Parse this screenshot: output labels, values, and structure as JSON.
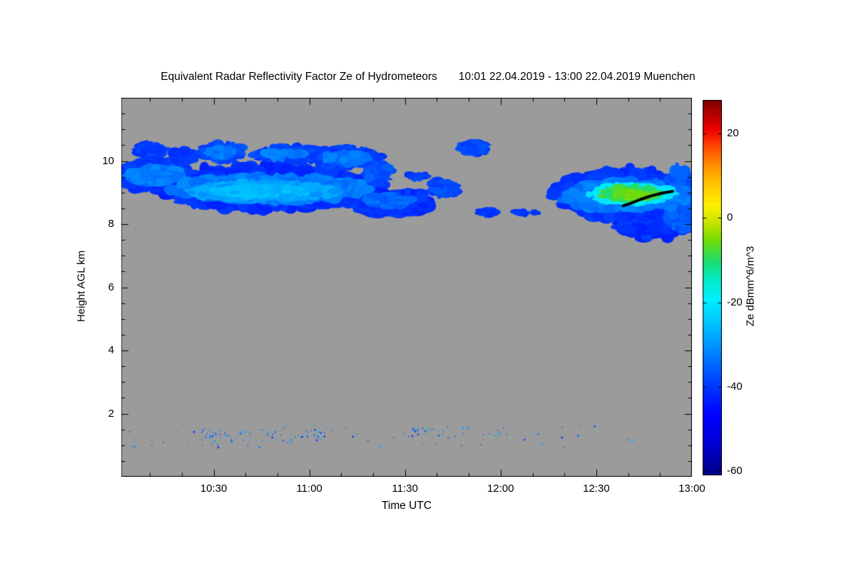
{
  "chart_data": {
    "type": "heatmap",
    "title": "Equivalent Radar Reflectivity Factor Ze of Hydrometeors",
    "subtitle": "10:01 22.04.2019 - 13:00 22.04.2019 Muenchen",
    "xlabel": "Time UTC",
    "ylabel": "Height AGL km",
    "x_range_hours": [
      10.0167,
      13.0
    ],
    "y_range_km": [
      0,
      12
    ],
    "x_ticks": [
      {
        "hour": 10.5,
        "label": "10:30"
      },
      {
        "hour": 11.0,
        "label": "11:00"
      },
      {
        "hour": 11.5,
        "label": "11:30"
      },
      {
        "hour": 12.0,
        "label": "12:00"
      },
      {
        "hour": 12.5,
        "label": "12:30"
      },
      {
        "hour": 13.0,
        "label": "13:00"
      }
    ],
    "x_minor_interval_min": 10,
    "y_ticks": [
      2,
      4,
      6,
      8,
      10
    ],
    "y_minor_interval_km": 0.5,
    "plot_bg": "#9b9b9b",
    "page_bg": "#ffffff",
    "colorbar": {
      "label": "Ze dBmm^6/m^3",
      "min": -61,
      "max": 28,
      "ticks": [
        20,
        0,
        -20,
        -40,
        -60
      ],
      "stops": [
        [
          0.0,
          "#000082"
        ],
        [
          0.08,
          "#0000D2"
        ],
        [
          0.16,
          "#0000FF"
        ],
        [
          0.25,
          "#0041FF"
        ],
        [
          0.33,
          "#0087FF"
        ],
        [
          0.41,
          "#00C8FF"
        ],
        [
          0.47,
          "#00EFFF"
        ],
        [
          0.52,
          "#00EBC8"
        ],
        [
          0.57,
          "#1EDC6E"
        ],
        [
          0.63,
          "#78DC00"
        ],
        [
          0.68,
          "#D2E600"
        ],
        [
          0.72,
          "#FFF000"
        ],
        [
          0.77,
          "#FFC800"
        ],
        [
          0.82,
          "#FF9600"
        ],
        [
          0.87,
          "#FF5000"
        ],
        [
          0.92,
          "#F00000"
        ],
        [
          1.0,
          "#7D0000"
        ]
      ]
    },
    "clouds": [
      {
        "t0": 10.02,
        "t1": 10.36,
        "h0": 9.1,
        "h1": 10.0,
        "value": -40,
        "puffs": 280,
        "pw": 10,
        "ph": 6,
        "seed": 11
      },
      {
        "t0": 10.24,
        "t1": 11.34,
        "h0": 8.5,
        "h1": 9.8,
        "value": -41,
        "puffs": 700,
        "pw": 12,
        "ph": 7,
        "seed": 12
      },
      {
        "t0": 11.22,
        "t1": 11.64,
        "h0": 8.3,
        "h1": 9.05,
        "value": -41,
        "puffs": 240,
        "pw": 10,
        "ph": 6,
        "seed": 13
      },
      {
        "t0": 10.1,
        "t1": 10.24,
        "h0": 10.15,
        "h1": 10.55,
        "value": -39,
        "puffs": 80,
        "pw": 8,
        "ph": 5,
        "seed": 14
      },
      {
        "t0": 10.28,
        "t1": 10.4,
        "h0": 9.95,
        "h1": 10.35,
        "value": -39,
        "puffs": 70,
        "pw": 8,
        "ph": 5,
        "seed": 15
      },
      {
        "t0": 10.44,
        "t1": 10.64,
        "h0": 10.0,
        "h1": 10.55,
        "value": -38,
        "puffs": 120,
        "pw": 9,
        "ph": 5,
        "seed": 16
      },
      {
        "t0": 10.72,
        "t1": 11.1,
        "h0": 10.0,
        "h1": 10.45,
        "value": -39,
        "puffs": 160,
        "pw": 9,
        "ph": 5,
        "seed": 17
      },
      {
        "t0": 11.04,
        "t1": 11.36,
        "h0": 9.8,
        "h1": 10.4,
        "value": -39,
        "puffs": 160,
        "pw": 9,
        "ph": 5,
        "seed": 18
      },
      {
        "t0": 11.3,
        "t1": 11.42,
        "h0": 9.3,
        "h1": 9.95,
        "value": -37,
        "puffs": 70,
        "pw": 7,
        "ph": 5,
        "seed": 40
      },
      {
        "t0": 10.05,
        "t1": 10.32,
        "h0": 9.3,
        "h1": 9.8,
        "value": -33,
        "puffs": 160,
        "pw": 9,
        "ph": 5,
        "seed": 19
      },
      {
        "t0": 10.32,
        "t1": 11.26,
        "h0": 8.7,
        "h1": 9.5,
        "value": -33,
        "puffs": 480,
        "pw": 11,
        "ph": 6,
        "seed": 20
      },
      {
        "t0": 10.4,
        "t1": 11.12,
        "h0": 8.78,
        "h1": 9.32,
        "value": -29,
        "puffs": 330,
        "pw": 10,
        "ph": 5,
        "seed": 21
      },
      {
        "t0": 10.5,
        "t1": 10.98,
        "h0": 8.88,
        "h1": 9.2,
        "value": -26,
        "puffs": 170,
        "pw": 9,
        "ph": 4,
        "seed": 22
      },
      {
        "t0": 10.46,
        "t1": 10.6,
        "h0": 10.12,
        "h1": 10.42,
        "value": -33,
        "puffs": 55,
        "pw": 7,
        "ph": 4,
        "seed": 23
      },
      {
        "t0": 10.76,
        "t1": 10.98,
        "h0": 10.08,
        "h1": 10.36,
        "value": -33,
        "puffs": 70,
        "pw": 7,
        "ph": 4,
        "seed": 24
      },
      {
        "t0": 11.08,
        "t1": 11.3,
        "h0": 9.9,
        "h1": 10.28,
        "value": -33,
        "puffs": 75,
        "pw": 7,
        "ph": 4,
        "seed": 25
      },
      {
        "t0": 11.3,
        "t1": 11.52,
        "h0": 8.55,
        "h1": 8.95,
        "value": -35,
        "puffs": 100,
        "pw": 8,
        "ph": 4,
        "seed": 26
      },
      {
        "t0": 11.62,
        "t1": 11.78,
        "h0": 8.9,
        "h1": 9.35,
        "value": -38,
        "puffs": 70,
        "pw": 8,
        "ph": 5,
        "seed": 27
      },
      {
        "t0": 11.78,
        "t1": 11.93,
        "h0": 10.2,
        "h1": 10.6,
        "value": -38,
        "puffs": 60,
        "pw": 7,
        "ph": 4,
        "seed": 28
      },
      {
        "t0": 11.87,
        "t1": 11.99,
        "h0": 8.28,
        "h1": 8.5,
        "value": -40,
        "puffs": 30,
        "pw": 6,
        "ph": 3,
        "seed": 29
      },
      {
        "t0": 12.07,
        "t1": 12.14,
        "h0": 8.28,
        "h1": 8.45,
        "value": -40,
        "puffs": 16,
        "pw": 5,
        "ph": 3,
        "seed": 30
      },
      {
        "t0": 12.16,
        "t1": 12.2,
        "h0": 8.3,
        "h1": 8.42,
        "value": -40,
        "puffs": 8,
        "pw": 4,
        "ph": 2,
        "seed": 39
      },
      {
        "t0": 11.5,
        "t1": 11.62,
        "h0": 9.42,
        "h1": 9.64,
        "value": -39,
        "puffs": 26,
        "pw": 6,
        "ph": 3,
        "seed": 31
      },
      {
        "t0": 12.32,
        "t1": 12.98,
        "h0": 8.15,
        "h1": 9.7,
        "value": -40,
        "puffs": 450,
        "pw": 11,
        "ph": 7,
        "seed": 32
      },
      {
        "t0": 12.6,
        "t1": 13.0,
        "h0": 7.6,
        "h1": 8.7,
        "value": -41,
        "puffs": 280,
        "pw": 10,
        "ph": 6,
        "seed": 33
      },
      {
        "t0": 12.86,
        "t1": 13.01,
        "h0": 7.75,
        "h1": 9.7,
        "value": -36,
        "puffs": 160,
        "pw": 7,
        "ph": 7,
        "seed": 34
      },
      {
        "t0": 12.36,
        "t1": 12.94,
        "h0": 8.45,
        "h1": 9.35,
        "value": -33,
        "puffs": 300,
        "pw": 10,
        "ph": 6,
        "seed": 35
      },
      {
        "t0": 12.48,
        "t1": 12.88,
        "h0": 8.68,
        "h1": 9.22,
        "value": -20,
        "puffs": 210,
        "pw": 9,
        "ph": 5,
        "seed": 36
      },
      {
        "t0": 12.54,
        "t1": 12.82,
        "h0": 8.76,
        "h1": 9.2,
        "value": -9,
        "puffs": 130,
        "pw": 8,
        "ph": 4,
        "seed": 37
      },
      {
        "t0": 12.6,
        "t1": 12.76,
        "h0": 8.82,
        "h1": 9.04,
        "value": -5,
        "puffs": 60,
        "pw": 7,
        "ph": 3,
        "seed": 38
      }
    ],
    "drizzle": [
      {
        "t0": 10.05,
        "t1": 12.7,
        "h0": 0.95,
        "h1": 1.65,
        "count": 70,
        "seed": 51
      },
      {
        "t0": 10.45,
        "t1": 11.1,
        "h0": 1.15,
        "h1": 1.55,
        "count": 60,
        "seed": 52
      },
      {
        "t0": 11.5,
        "t1": 12.1,
        "h0": 1.3,
        "h1": 1.6,
        "count": 25,
        "seed": 53
      }
    ],
    "flight_track": {
      "color": "#000000",
      "width": 4,
      "points": [
        [
          12.64,
          8.58
        ],
        [
          12.68,
          8.66
        ],
        [
          12.73,
          8.78
        ],
        [
          12.79,
          8.9
        ],
        [
          12.85,
          8.99
        ],
        [
          12.9,
          9.04
        ]
      ]
    }
  }
}
